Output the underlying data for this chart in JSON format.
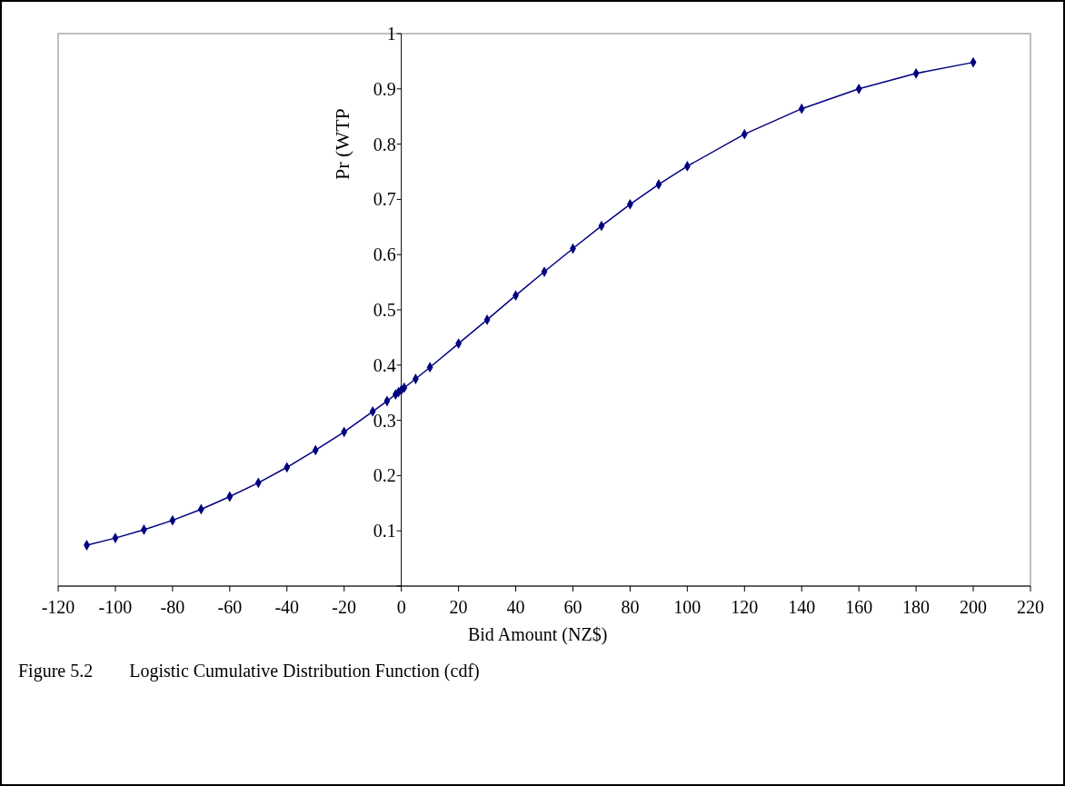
{
  "chart_data": {
    "type": "line",
    "xlabel": "Bid Amount (NZ$)",
    "ylabel": "Pr (WTP",
    "annotations": [
      "Figure 5.2        Logistic Cumulative Distribution Function (cdf)"
    ],
    "x": [
      -110,
      -100,
      -90,
      -80,
      -70,
      -60,
      -50,
      -40,
      -30,
      -20,
      -10,
      -5,
      -2,
      -1,
      0,
      1,
      5,
      10,
      20,
      30,
      40,
      50,
      60,
      70,
      80,
      90,
      100,
      120,
      140,
      160,
      180,
      200
    ],
    "series": [
      {
        "color": "#000080",
        "values": [
          0.074,
          0.087,
          0.102,
          0.119,
          0.139,
          0.162,
          0.187,
          0.215,
          0.246,
          0.279,
          0.316,
          0.335,
          0.347,
          0.351,
          0.355,
          0.359,
          0.375,
          0.396,
          0.439,
          0.482,
          0.526,
          0.569,
          0.611,
          0.652,
          0.691,
          0.727,
          0.76,
          0.818,
          0.864,
          0.9,
          0.928,
          0.948
        ]
      }
    ],
    "xlim": [
      -120,
      220
    ],
    "xticks": [
      -120,
      -100,
      -80,
      -60,
      -40,
      -20,
      0,
      20,
      40,
      60,
      80,
      100,
      120,
      140,
      160,
      180,
      200,
      220
    ],
    "ylim": [
      0,
      1
    ],
    "yticks": [
      {
        "value": 0,
        "label": null
      },
      0.1,
      0.2,
      0.3,
      0.4,
      0.5,
      0.6,
      0.7,
      0.8,
      0.9,
      1
    ],
    "grid": false,
    "marker": "diamond",
    "line_style": "solid"
  }
}
